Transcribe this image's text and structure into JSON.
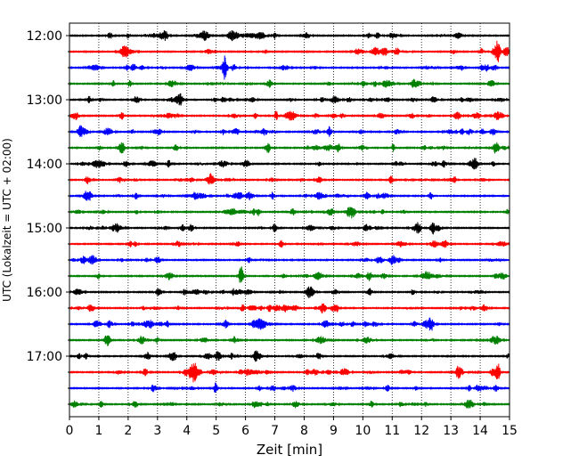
{
  "chart_data": {
    "type": "line",
    "subtype": "helicorder",
    "xlabel": "Zeit  [min]",
    "ylabel": "UTC (Lokalzeit = UTC + 02:00)",
    "xlim": [
      0,
      15
    ],
    "x_ticks": [
      0,
      1,
      2,
      3,
      4,
      5,
      6,
      7,
      8,
      9,
      10,
      11,
      12,
      13,
      14,
      15
    ],
    "y_time_labels": [
      "12:00",
      "13:00",
      "14:00",
      "15:00",
      "16:00",
      "17:00"
    ],
    "trace_interval_min": 15,
    "trace_count": 24,
    "trace_colors": [
      "#000000",
      "#ff0000",
      "#0000ff",
      "#008000"
    ],
    "vertical_grid": "dotted at each minute",
    "notable_events": [
      {
        "trace_start": "15:45",
        "minute": 5.85,
        "note": "largest green spike"
      },
      {
        "trace_start": "17:15",
        "minute": 14.6,
        "note": "red spike"
      },
      {
        "trace_start": "12:15",
        "minute": 14.6,
        "note": "red spike"
      },
      {
        "trace_start": "12:30",
        "minute": 5.3,
        "note": "blue spike"
      }
    ]
  }
}
